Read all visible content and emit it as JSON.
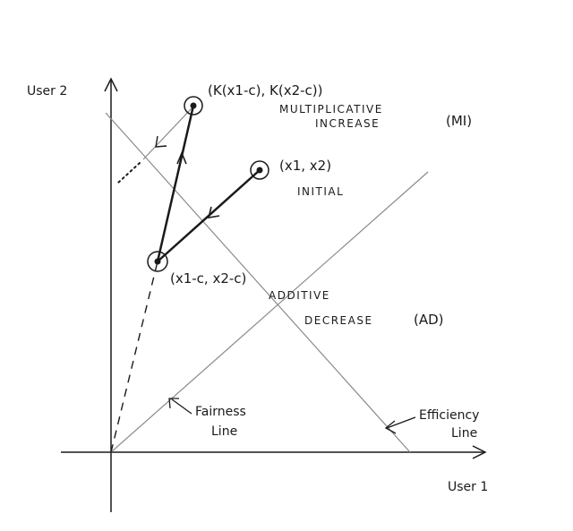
{
  "axes": {
    "x_label": "User 1",
    "y_label": "User 2"
  },
  "lines": {
    "fairness": [
      "Fairness",
      "Line"
    ],
    "efficiency": [
      "Efficiency",
      "Line"
    ]
  },
  "points": {
    "initial": {
      "coords": "(x1, x2)",
      "label": "INITIAL"
    },
    "additive_decrease": {
      "coords": "(x1-c, x2-c)",
      "label_line1": "ADDITIVE",
      "label_line2": "DECREASE",
      "abbr": "(AD)"
    },
    "multiplicative_increase": {
      "coords": "(K(x1-c), K(x2-c))",
      "label_line1": "MULTIPLICATIVE",
      "label_line2": "INCREASE",
      "abbr": "(MI)"
    }
  },
  "colors": {
    "ink": "#1a1a1a",
    "thin_line": "#8a8a8a"
  }
}
